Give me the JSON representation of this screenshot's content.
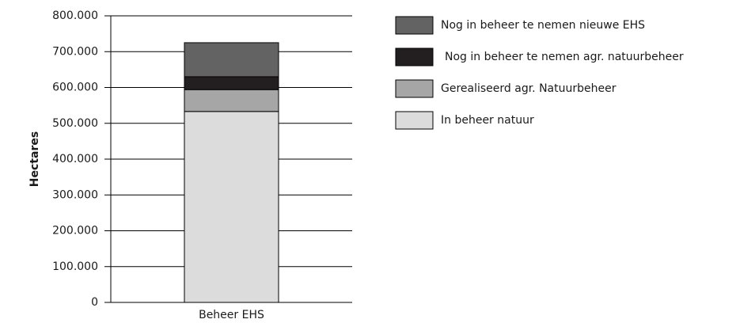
{
  "chart_data": {
    "type": "stacked_bar",
    "categories": [
      "Beheer EHS"
    ],
    "y_label": "Hectares",
    "series": [
      {
        "name": "In beheer natuur",
        "color": "#dcdcdc",
        "values": [
          533000
        ]
      },
      {
        "name": "Gerealiseerd agr. Natuurbeheer",
        "color": "#a6a6a6",
        "values": [
          61000
        ]
      },
      {
        "name": "Nog in beheer te nemen agr. natuurbeheer",
        "color": "#231f20",
        "values": [
          36000
        ]
      },
      {
        "name": "Nog in beheer te nemen nieuwe EHS",
        "color": "#636363",
        "values": [
          95000
        ]
      }
    ],
    "ylim": [
      0,
      800000
    ],
    "yticks": [
      0,
      {
        "value": 100000,
        "label": "100.000"
      },
      {
        "value": 200000,
        "label": "200.000"
      },
      {
        "value": 300000,
        "label": "300.000"
      },
      {
        "value": 400000,
        "label": "400.000"
      },
      {
        "value": 500000,
        "label": "500.000"
      },
      {
        "value": 600000,
        "label": "600.000"
      },
      {
        "value": 700000,
        "label": "700.000"
      },
      {
        "value": 800000,
        "label": "800.000"
      }
    ],
    "grid": true,
    "legend": "right"
  }
}
